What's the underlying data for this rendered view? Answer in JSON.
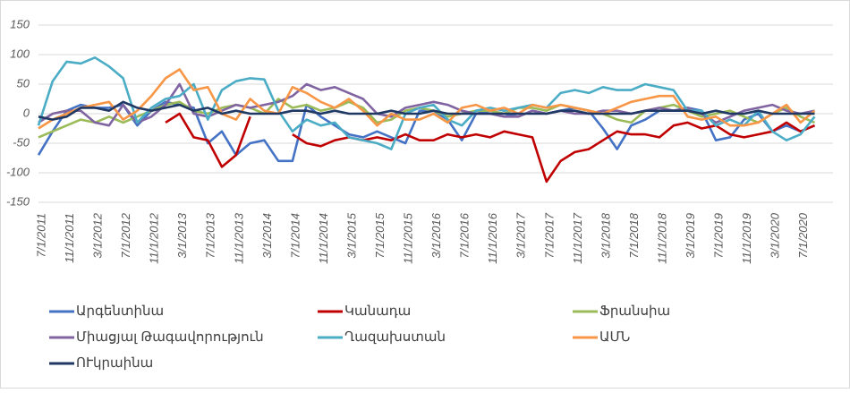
{
  "chart_data": {
    "type": "line",
    "categories": [
      "7/1/2011",
      null,
      "11/1/2011",
      null,
      "3/1/2012",
      null,
      "7/1/2012",
      null,
      "11/1/2012",
      null,
      "3/1/2013",
      null,
      "7/1/2013",
      null,
      "11/1/2013",
      null,
      "3/1/2014",
      null,
      "7/1/2014",
      null,
      "11/1/2014",
      null,
      "3/1/2015",
      null,
      "7/1/2015",
      null,
      "11/1/2015",
      null,
      "3/1/2016",
      null,
      "7/1/2016",
      null,
      "11/1/2016",
      null,
      "3/1/2017",
      null,
      "7/1/2017",
      null,
      "11/1/2017",
      null,
      "3/1/2018",
      null,
      "7/1/2018",
      null,
      "11/1/2018",
      null,
      "3/1/2019",
      null,
      "7/1/2019",
      null,
      "11/1/2019",
      null,
      "3/1/2020",
      null,
      "7/1/2020",
      null
    ],
    "series": [
      {
        "name": "Արգենտինա",
        "color": "#4472c4",
        "values": [
          -70,
          -30,
          5,
          15,
          10,
          10,
          15,
          -20,
          5,
          20,
          15,
          10,
          -50,
          -30,
          -70,
          -50,
          -45,
          -80,
          -80,
          15,
          -5,
          -20,
          -35,
          -40,
          -30,
          -40,
          -50,
          5,
          5,
          -10,
          -45,
          0,
          5,
          0,
          -5,
          5,
          0,
          5,
          10,
          5,
          -25,
          -60,
          -20,
          -10,
          5,
          5,
          10,
          5,
          -45,
          -40,
          -10,
          0,
          -30,
          -20,
          -30,
          -20
        ]
      },
      {
        "name": "Կանադա",
        "color": "#c00000",
        "values": [
          null,
          null,
          null,
          null,
          null,
          null,
          null,
          null,
          null,
          -15,
          0,
          -40,
          -45,
          -90,
          -70,
          -5,
          null,
          null,
          -35,
          -50,
          -55,
          -45,
          -40,
          -45,
          -40,
          -45,
          -35,
          -45,
          -45,
          -35,
          -40,
          -35,
          -40,
          -30,
          -35,
          -40,
          -115,
          -80,
          -65,
          -60,
          -45,
          -30,
          -35,
          -35,
          -40,
          -20,
          -15,
          -25,
          -20,
          -35,
          -40,
          -35,
          -30,
          -15,
          -30,
          -20
        ]
      },
      {
        "name": "Ֆրանսիա",
        "color": "#9bbb59",
        "values": [
          -40,
          -30,
          -20,
          -10,
          -15,
          -5,
          -15,
          -5,
          5,
          15,
          20,
          5,
          0,
          10,
          15,
          10,
          0,
          25,
          10,
          15,
          5,
          10,
          20,
          10,
          -15,
          -10,
          5,
          10,
          5,
          -5,
          0,
          5,
          5,
          0,
          10,
          10,
          5,
          15,
          10,
          5,
          0,
          -10,
          -15,
          5,
          10,
          15,
          5,
          -5,
          0,
          5,
          -5,
          -15,
          0,
          10,
          -5,
          -15
        ]
      },
      {
        "name": "Միացյալ Թագավորություն",
        "color": "#8064a2",
        "values": [
          -15,
          0,
          5,
          5,
          -15,
          -20,
          15,
          -15,
          -5,
          15,
          50,
          0,
          -5,
          5,
          15,
          10,
          15,
          20,
          30,
          50,
          40,
          45,
          35,
          25,
          0,
          -5,
          10,
          15,
          20,
          15,
          5,
          0,
          0,
          -5,
          -5,
          5,
          0,
          5,
          0,
          0,
          5,
          5,
          0,
          5,
          10,
          5,
          10,
          0,
          -15,
          -5,
          5,
          10,
          15,
          5,
          0,
          5
        ]
      },
      {
        "name": "Ղազախստան",
        "color": "#4bacc6",
        "values": [
          -20,
          55,
          88,
          85,
          95,
          80,
          60,
          -15,
          10,
          25,
          30,
          50,
          -10,
          40,
          55,
          60,
          58,
          5,
          -30,
          -10,
          -20,
          -15,
          -40,
          -45,
          -50,
          -60,
          0,
          10,
          15,
          -10,
          -20,
          5,
          10,
          5,
          10,
          15,
          10,
          35,
          40,
          35,
          45,
          40,
          40,
          50,
          45,
          40,
          5,
          5,
          -20,
          -10,
          -20,
          5,
          -30,
          -45,
          -35,
          -5
        ]
      },
      {
        "name": "ԱՄՆ",
        "color": "#f79646",
        "values": [
          -25,
          -10,
          0,
          10,
          15,
          20,
          -10,
          5,
          30,
          60,
          75,
          40,
          45,
          0,
          -10,
          25,
          5,
          0,
          45,
          35,
          20,
          10,
          25,
          5,
          -20,
          0,
          -10,
          -10,
          0,
          -15,
          10,
          15,
          5,
          10,
          0,
          15,
          10,
          15,
          10,
          5,
          0,
          10,
          20,
          25,
          30,
          30,
          -5,
          -10,
          -5,
          -20,
          -20,
          -15,
          0,
          15,
          -15,
          5
        ]
      },
      {
        "name": "ՈՒկրաինա",
        "color": "#1f3864",
        "values": [
          -5,
          -10,
          -5,
          10,
          10,
          5,
          20,
          10,
          5,
          10,
          15,
          5,
          10,
          0,
          5,
          0,
          0,
          0,
          5,
          5,
          0,
          5,
          0,
          0,
          0,
          5,
          0,
          0,
          5,
          0,
          0,
          0,
          0,
          0,
          0,
          0,
          0,
          5,
          5,
          0,
          0,
          0,
          0,
          5,
          5,
          5,
          5,
          0,
          5,
          0,
          0,
          5,
          0,
          0,
          0,
          0
        ]
      }
    ],
    "ylim": [
      -150,
      150
    ],
    "yticks": [
      -150,
      -100,
      -50,
      0,
      50,
      100,
      150
    ],
    "grid": true
  }
}
